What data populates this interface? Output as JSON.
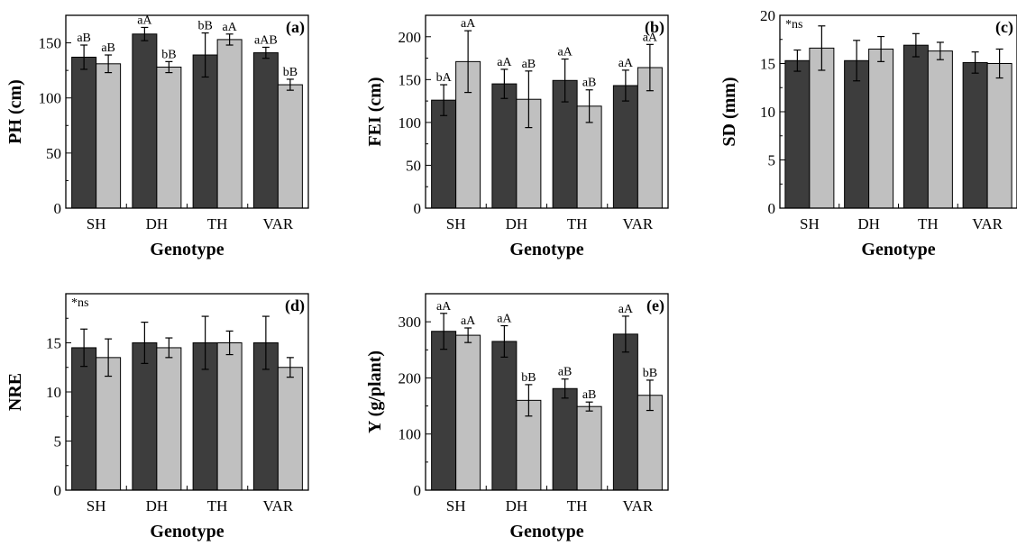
{
  "colors": {
    "dark_bar": "#3d3d3d",
    "light_bar": "#c0c0c0",
    "edge": "#000000"
  },
  "chart_data": [
    {
      "panel": "(a)",
      "type": "bar",
      "ylabel": "PH (cm)",
      "xlabel": "Genotype",
      "categories": [
        "SH",
        "DH",
        "TH",
        "VAR"
      ],
      "ylim": [
        0,
        175
      ],
      "yticks": [
        0,
        50,
        100,
        150
      ],
      "note": "",
      "series": [
        {
          "values": [
            137,
            158,
            139,
            141
          ],
          "errors": [
            11,
            6,
            20,
            5
          ],
          "letters": [
            "aB",
            "aA",
            "bB",
            "aAB"
          ]
        },
        {
          "values": [
            131,
            128,
            153,
            112
          ],
          "errors": [
            8,
            5,
            5,
            5
          ],
          "letters": [
            "aB",
            "bB",
            "aA",
            "bB"
          ]
        }
      ]
    },
    {
      "panel": "(b)",
      "type": "bar",
      "ylabel": "FEI (cm)",
      "xlabel": "Genotype",
      "categories": [
        "SH",
        "DH",
        "TH",
        "VAR"
      ],
      "ylim": [
        0,
        225
      ],
      "yticks": [
        0,
        50,
        100,
        150,
        200
      ],
      "note": "",
      "series": [
        {
          "values": [
            126,
            145,
            149,
            143
          ],
          "errors": [
            18,
            17,
            25,
            18
          ],
          "letters": [
            "bA",
            "aA",
            "aA",
            "aA"
          ]
        },
        {
          "values": [
            171,
            127,
            119,
            164
          ],
          "errors": [
            36,
            33,
            19,
            27
          ],
          "letters": [
            "aA",
            "aB",
            "aB",
            "aA"
          ]
        }
      ]
    },
    {
      "panel": "(c)",
      "type": "bar",
      "ylabel": "SD (mm)",
      "xlabel": "Genotype",
      "categories": [
        "SH",
        "DH",
        "TH",
        "VAR"
      ],
      "ylim": [
        0,
        20
      ],
      "yticks": [
        0,
        5,
        10,
        15,
        20
      ],
      "note": "*ns",
      "series": [
        {
          "values": [
            15.3,
            15.3,
            16.9,
            15.1
          ],
          "errors": [
            1.1,
            2.1,
            1.2,
            1.1
          ],
          "letters": [
            "",
            "",
            "",
            ""
          ]
        },
        {
          "values": [
            16.6,
            16.5,
            16.3,
            15.0
          ],
          "errors": [
            2.3,
            1.3,
            0.9,
            1.5
          ],
          "letters": [
            "",
            "",
            "",
            ""
          ]
        }
      ]
    },
    {
      "panel": "(d)",
      "type": "bar",
      "ylabel": "NRE",
      "xlabel": "Genotype",
      "categories": [
        "SH",
        "DH",
        "TH",
        "VAR"
      ],
      "ylim": [
        0,
        20
      ],
      "yticks": [
        0,
        5,
        10,
        15
      ],
      "note": "*ns",
      "series": [
        {
          "values": [
            14.5,
            15.0,
            15.0,
            15.0
          ],
          "errors": [
            1.9,
            2.1,
            2.7,
            2.7
          ],
          "letters": [
            "",
            "",
            "",
            ""
          ]
        },
        {
          "values": [
            13.5,
            14.5,
            15.0,
            12.5
          ],
          "errors": [
            1.9,
            1.0,
            1.2,
            1.0
          ],
          "letters": [
            "",
            "",
            "",
            ""
          ]
        }
      ]
    },
    {
      "panel": "(e)",
      "type": "bar",
      "ylabel": "Y (g/plant)",
      "xlabel": "Genotype",
      "categories": [
        "SH",
        "DH",
        "TH",
        "VAR"
      ],
      "ylim": [
        0,
        350
      ],
      "yticks": [
        0,
        100,
        200,
        300
      ],
      "note": "",
      "series": [
        {
          "values": [
            283,
            265,
            181,
            278
          ],
          "errors": [
            32,
            28,
            17,
            32
          ],
          "letters": [
            "aA",
            "aA",
            "aB",
            "aA"
          ]
        },
        {
          "values": [
            276,
            160,
            149,
            169
          ],
          "errors": [
            13,
            28,
            8,
            27
          ],
          "letters": [
            "aA",
            "bB",
            "aB",
            "bB"
          ]
        }
      ]
    }
  ]
}
